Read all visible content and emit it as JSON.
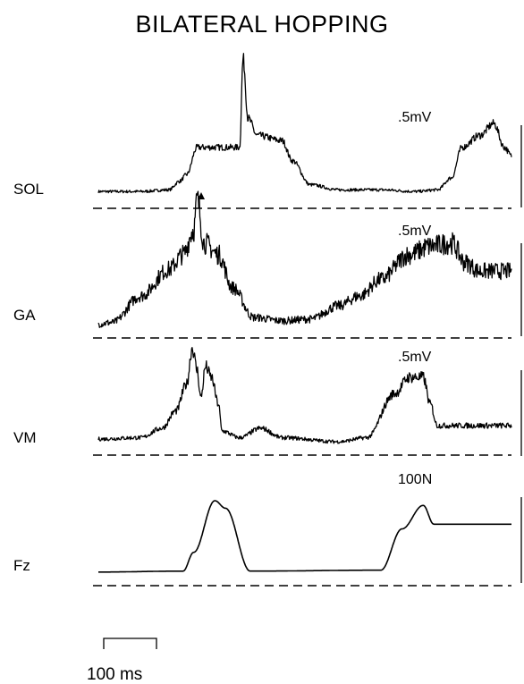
{
  "title": "BILATERAL HOPPING",
  "chart_data": {
    "type": "line",
    "title": "BILATERAL HOPPING",
    "time_scale_label": "100 ms",
    "time_scale_ms": 100,
    "onset_marker": "triangle",
    "series": [
      {
        "name": "SOL",
        "scale_label": ".5mV",
        "units": "mV",
        "scale_value": 0.5,
        "peak_ms": 240,
        "baseline": 0.02,
        "points": [
          [
            0,
            0.02
          ],
          [
            60,
            0.02
          ],
          [
            100,
            0.03
          ],
          [
            115,
            0.08
          ],
          [
            125,
            0.12
          ],
          [
            140,
            0.28
          ],
          [
            200,
            0.28
          ],
          [
            205,
            0.8
          ],
          [
            212,
            0.45
          ],
          [
            225,
            0.35
          ],
          [
            260,
            0.32
          ],
          [
            275,
            0.2
          ],
          [
            300,
            0.06
          ],
          [
            340,
            0.03
          ],
          [
            400,
            0.03
          ],
          [
            450,
            0.02
          ],
          [
            480,
            0.03
          ],
          [
            500,
            0.1
          ],
          [
            515,
            0.28
          ],
          [
            540,
            0.35
          ],
          [
            560,
            0.42
          ],
          [
            575,
            0.28
          ],
          [
            585,
            0.23
          ]
        ],
        "noise": 0.025
      },
      {
        "name": "GA",
        "scale_label": ".5mV",
        "units": "mV",
        "scale_value": 0.5,
        "peak_ms": 230,
        "baseline": 0.02,
        "points": [
          [
            0,
            0.03
          ],
          [
            20,
            0.04
          ],
          [
            60,
            0.2
          ],
          [
            100,
            0.36
          ],
          [
            120,
            0.45
          ],
          [
            135,
            0.6
          ],
          [
            140,
            0.78
          ],
          [
            150,
            0.52
          ],
          [
            170,
            0.45
          ],
          [
            190,
            0.25
          ],
          [
            220,
            0.07
          ],
          [
            260,
            0.05
          ],
          [
            300,
            0.06
          ],
          [
            340,
            0.14
          ],
          [
            370,
            0.2
          ],
          [
            400,
            0.3
          ],
          [
            440,
            0.45
          ],
          [
            470,
            0.5
          ],
          [
            500,
            0.52
          ],
          [
            520,
            0.4
          ],
          [
            540,
            0.35
          ]
        ],
        "noise": 0.06
      },
      {
        "name": "VM",
        "scale_label": ".5mV",
        "units": "mV",
        "scale_value": 0.5,
        "peak_ms": 220,
        "baseline": 0.02,
        "points": [
          [
            0,
            0.04
          ],
          [
            60,
            0.05
          ],
          [
            90,
            0.12
          ],
          [
            110,
            0.25
          ],
          [
            125,
            0.45
          ],
          [
            133,
            0.72
          ],
          [
            140,
            0.55
          ],
          [
            145,
            0.35
          ],
          [
            152,
            0.58
          ],
          [
            160,
            0.5
          ],
          [
            170,
            0.3
          ],
          [
            175,
            0.1
          ],
          [
            200,
            0.05
          ],
          [
            230,
            0.12
          ],
          [
            260,
            0.05
          ],
          [
            340,
            0.02
          ],
          [
            380,
            0.05
          ],
          [
            420,
            0.38
          ],
          [
            440,
            0.5
          ],
          [
            460,
            0.5
          ],
          [
            470,
            0.3
          ],
          [
            480,
            0.14
          ]
        ],
        "noise": 0.04
      },
      {
        "name": "Fz",
        "scale_label": "100N",
        "units": "N",
        "scale_value": 100,
        "peak_ms": 270,
        "baseline": 0.04,
        "points": [
          [
            0,
            0.04
          ],
          [
            120,
            0.05
          ],
          [
            135,
            0.25
          ],
          [
            165,
            0.8
          ],
          [
            180,
            0.72
          ],
          [
            215,
            0.05
          ],
          [
            400,
            0.06
          ],
          [
            430,
            0.5
          ],
          [
            460,
            0.75
          ],
          [
            475,
            0.55
          ]
        ],
        "noise": 0
      }
    ]
  }
}
